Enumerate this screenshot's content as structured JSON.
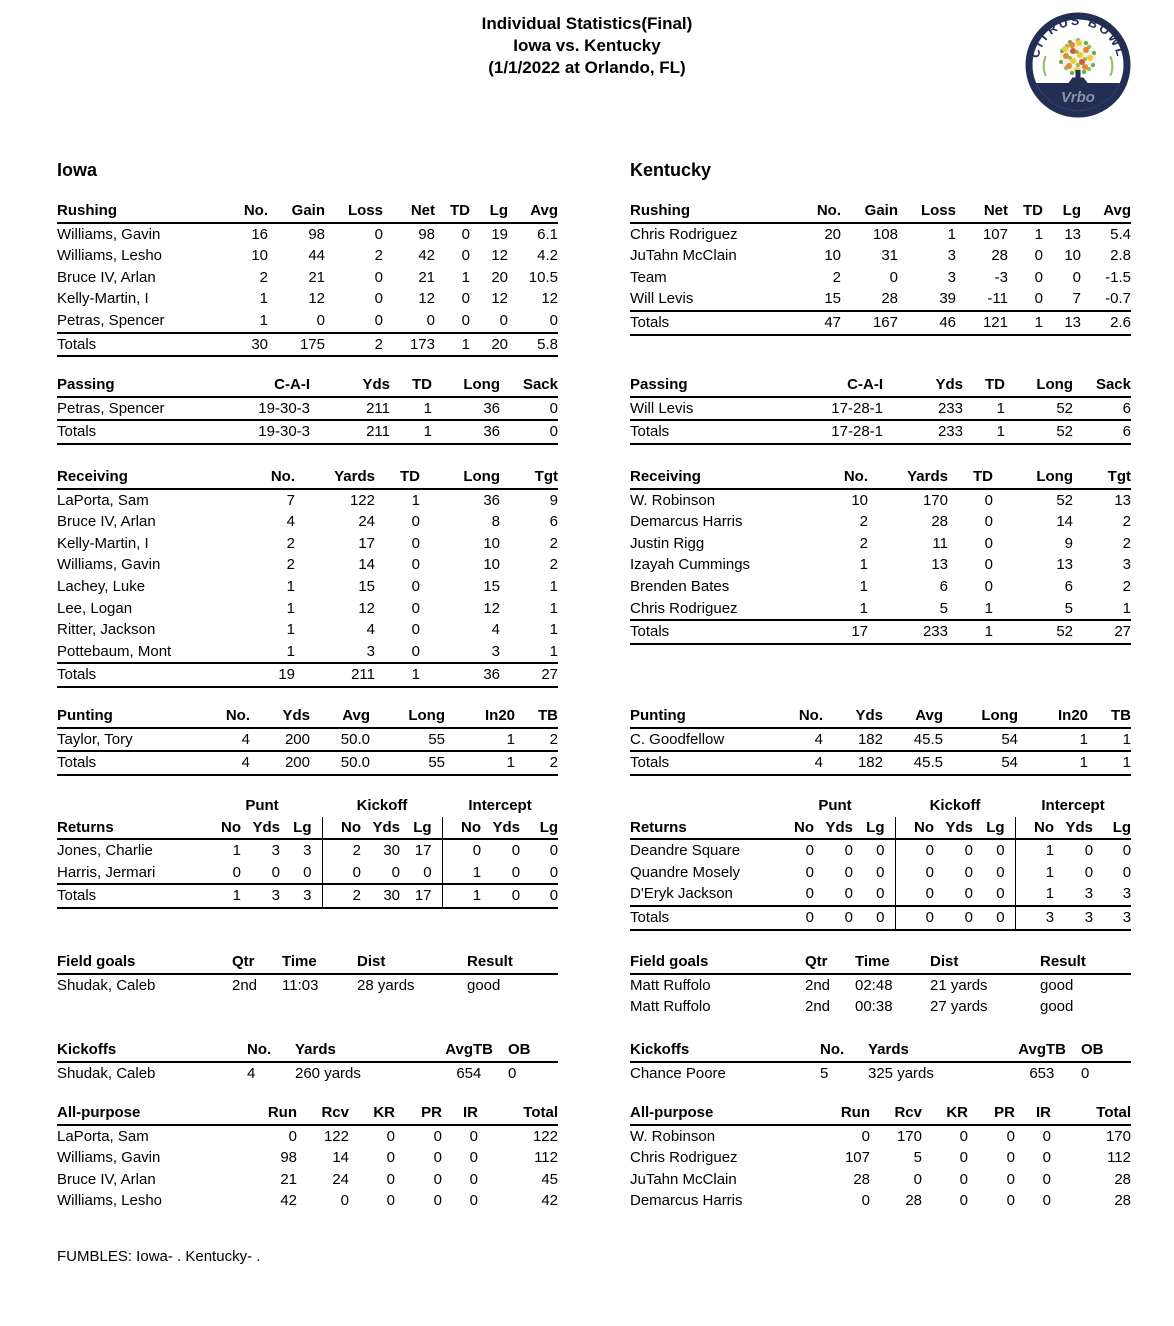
{
  "header": {
    "title_line1": "Individual Statistics(Final)",
    "title_line2": "Iowa vs. Kentucky",
    "title_line3": "(1/1/2022 at Orlando, FL)",
    "logo": {
      "label": "CITRUS BOWL",
      "sponsor": "Vrbo",
      "colors": {
        "navy": "#232e54",
        "leaf_green": "#6aa84f",
        "light_green": "#8fbc61",
        "orange": "#e8872d",
        "yellow": "#f2c73c",
        "red_orange": "#d45f2e",
        "sponsor_gray": "#8b94a6"
      }
    }
  },
  "teams": [
    {
      "name": "Iowa",
      "rushing": {
        "headers": [
          "Rushing",
          "No.",
          "Gain",
          "Loss",
          "Net",
          "TD",
          "Lg",
          "Avg"
        ],
        "rows": [
          [
            "Williams, Gavin",
            "16",
            "98",
            "0",
            "98",
            "0",
            "19",
            "6.1"
          ],
          [
            "Williams, Lesho",
            "10",
            "44",
            "2",
            "42",
            "0",
            "12",
            "4.2"
          ],
          [
            "Bruce IV, Arlan",
            "2",
            "21",
            "0",
            "21",
            "1",
            "20",
            "10.5"
          ],
          [
            "Kelly-Martin, I",
            "1",
            "12",
            "0",
            "12",
            "0",
            "12",
            "12"
          ],
          [
            "Petras, Spencer",
            "1",
            "0",
            "0",
            "0",
            "0",
            "0",
            "0"
          ]
        ],
        "totals": [
          "Totals",
          "30",
          "175",
          "2",
          "173",
          "1",
          "20",
          "5.8"
        ]
      },
      "passing": {
        "headers": [
          "Passing",
          "C-A-I",
          "Yds",
          "TD",
          "Long",
          "Sack"
        ],
        "rows": [
          [
            "Petras, Spencer",
            "19-30-3",
            "211",
            "1",
            "36",
            "0"
          ]
        ],
        "totals": [
          "Totals",
          "19-30-3",
          "211",
          "1",
          "36",
          "0"
        ]
      },
      "receiving": {
        "headers": [
          "Receiving",
          "No.",
          "Yards",
          "TD",
          "Long",
          "Tgt"
        ],
        "rows": [
          [
            "LaPorta, Sam",
            "7",
            "122",
            "1",
            "36",
            "9"
          ],
          [
            "Bruce IV, Arlan",
            "4",
            "24",
            "0",
            "8",
            "6"
          ],
          [
            "Kelly-Martin, I",
            "2",
            "17",
            "0",
            "10",
            "2"
          ],
          [
            "Williams, Gavin",
            "2",
            "14",
            "0",
            "10",
            "2"
          ],
          [
            "Lachey, Luke",
            "1",
            "15",
            "0",
            "15",
            "1"
          ],
          [
            "Lee, Logan",
            "1",
            "12",
            "0",
            "12",
            "1"
          ],
          [
            "Ritter, Jackson",
            "1",
            "4",
            "0",
            "4",
            "1"
          ],
          [
            "Pottebaum, Mont",
            "1",
            "3",
            "0",
            "3",
            "1"
          ]
        ],
        "totals": [
          "Totals",
          "19",
          "211",
          "1",
          "36",
          "27"
        ]
      },
      "punting": {
        "headers": [
          "Punting",
          "No.",
          "Yds",
          "Avg",
          "Long",
          "In20",
          "TB"
        ],
        "rows": [
          [
            "Taylor, Tory",
            "4",
            "200",
            "50.0",
            "55",
            "1",
            "2"
          ]
        ],
        "totals": [
          "Totals",
          "4",
          "200",
          "50.0",
          "55",
          "1",
          "2"
        ]
      },
      "returns": {
        "group_headers": [
          "Punt",
          "Kickoff",
          "Intercept"
        ],
        "headers": [
          "Returns",
          "No",
          "Yds",
          "Lg",
          "No",
          "Yds",
          "Lg",
          "No",
          "Yds",
          "Lg"
        ],
        "rows": [
          [
            "Jones, Charlie",
            "1",
            "3",
            "3",
            "2",
            "30",
            "17",
            "0",
            "0",
            "0"
          ],
          [
            "Harris, Jermari",
            "0",
            "0",
            "0",
            "0",
            "0",
            "0",
            "1",
            "0",
            "0"
          ]
        ],
        "totals": [
          "Totals",
          "1",
          "3",
          "3",
          "2",
          "30",
          "17",
          "1",
          "0",
          "0"
        ]
      },
      "field_goals": {
        "headers": [
          "Field goals",
          "Qtr",
          "Time",
          "Dist",
          "Result"
        ],
        "rows": [
          [
            "Shudak, Caleb",
            "2nd",
            "11:03",
            "28 yards",
            "good"
          ]
        ]
      },
      "kickoffs": {
        "headers": [
          "Kickoffs",
          "No.",
          "Yards",
          "Avg",
          "TB",
          "OB"
        ],
        "rows": [
          [
            "Shudak, Caleb",
            "4",
            "260 yards",
            "65",
            "4",
            "0"
          ]
        ]
      },
      "all_purpose": {
        "headers": [
          "All-purpose",
          "Run",
          "Rcv",
          "KR",
          "PR",
          "IR",
          "Total"
        ],
        "rows": [
          [
            "LaPorta, Sam",
            "0",
            "122",
            "0",
            "0",
            "0",
            "122"
          ],
          [
            "Williams, Gavin",
            "98",
            "14",
            "0",
            "0",
            "0",
            "112"
          ],
          [
            "Bruce IV, Arlan",
            "21",
            "24",
            "0",
            "0",
            "0",
            "45"
          ],
          [
            "Williams, Lesho",
            "42",
            "0",
            "0",
            "0",
            "0",
            "42"
          ]
        ]
      }
    },
    {
      "name": "Kentucky",
      "rushing": {
        "headers": [
          "Rushing",
          "No.",
          "Gain",
          "Loss",
          "Net",
          "TD",
          "Lg",
          "Avg"
        ],
        "rows": [
          [
            "Chris Rodriguez",
            "20",
            "108",
            "1",
            "107",
            "1",
            "13",
            "5.4"
          ],
          [
            "JuTahn McClain",
            "10",
            "31",
            "3",
            "28",
            "0",
            "10",
            "2.8"
          ],
          [
            "Team",
            "2",
            "0",
            "3",
            "-3",
            "0",
            "0",
            "-1.5"
          ],
          [
            "Will Levis",
            "15",
            "28",
            "39",
            "-11",
            "0",
            "7",
            "-0.7"
          ]
        ],
        "totals": [
          "Totals",
          "47",
          "167",
          "46",
          "121",
          "1",
          "13",
          "2.6"
        ]
      },
      "passing": {
        "headers": [
          "Passing",
          "C-A-I",
          "Yds",
          "TD",
          "Long",
          "Sack"
        ],
        "rows": [
          [
            "Will Levis",
            "17-28-1",
            "233",
            "1",
            "52",
            "6"
          ]
        ],
        "totals": [
          "Totals",
          "17-28-1",
          "233",
          "1",
          "52",
          "6"
        ]
      },
      "receiving": {
        "headers": [
          "Receiving",
          "No.",
          "Yards",
          "TD",
          "Long",
          "Tgt"
        ],
        "rows": [
          [
            "W. Robinson",
            "10",
            "170",
            "0",
            "52",
            "13"
          ],
          [
            "Demarcus Harris",
            "2",
            "28",
            "0",
            "14",
            "2"
          ],
          [
            "Justin Rigg",
            "2",
            "11",
            "0",
            "9",
            "2"
          ],
          [
            "Izayah Cummings",
            "1",
            "13",
            "0",
            "13",
            "3"
          ],
          [
            "Brenden Bates",
            "1",
            "6",
            "0",
            "6",
            "2"
          ],
          [
            "Chris Rodriguez",
            "1",
            "5",
            "1",
            "5",
            "1"
          ]
        ],
        "totals": [
          "Totals",
          "17",
          "233",
          "1",
          "52",
          "27"
        ]
      },
      "punting": {
        "headers": [
          "Punting",
          "No.",
          "Yds",
          "Avg",
          "Long",
          "In20",
          "TB"
        ],
        "rows": [
          [
            "C. Goodfellow",
            "4",
            "182",
            "45.5",
            "54",
            "1",
            "1"
          ]
        ],
        "totals": [
          "Totals",
          "4",
          "182",
          "45.5",
          "54",
          "1",
          "1"
        ]
      },
      "returns": {
        "group_headers": [
          "Punt",
          "Kickoff",
          "Intercept"
        ],
        "headers": [
          "Returns",
          "No",
          "Yds",
          "Lg",
          "No",
          "Yds",
          "Lg",
          "No",
          "Yds",
          "Lg"
        ],
        "rows": [
          [
            "Deandre Square",
            "0",
            "0",
            "0",
            "0",
            "0",
            "0",
            "1",
            "0",
            "0"
          ],
          [
            "Quandre Mosely",
            "0",
            "0",
            "0",
            "0",
            "0",
            "0",
            "1",
            "0",
            "0"
          ],
          [
            "D'Eryk Jackson",
            "0",
            "0",
            "0",
            "0",
            "0",
            "0",
            "1",
            "3",
            "3"
          ]
        ],
        "totals": [
          "Totals",
          "0",
          "0",
          "0",
          "0",
          "0",
          "0",
          "3",
          "3",
          "3"
        ]
      },
      "field_goals": {
        "headers": [
          "Field goals",
          "Qtr",
          "Time",
          "Dist",
          "Result"
        ],
        "rows": [
          [
            "Matt Ruffolo",
            "2nd",
            "02:48",
            "21 yards",
            "good"
          ],
          [
            "Matt Ruffolo",
            "2nd",
            "00:38",
            "27 yards",
            "good"
          ]
        ]
      },
      "kickoffs": {
        "headers": [
          "Kickoffs",
          "No.",
          "Yards",
          "Avg",
          "TB",
          "OB"
        ],
        "rows": [
          [
            "Chance Poore",
            "5",
            "325 yards",
            "65",
            "3",
            "0"
          ]
        ]
      },
      "all_purpose": {
        "headers": [
          "All-purpose",
          "Run",
          "Rcv",
          "KR",
          "PR",
          "IR",
          "Total"
        ],
        "rows": [
          [
            "W. Robinson",
            "0",
            "170",
            "0",
            "0",
            "0",
            "170"
          ],
          [
            "Chris Rodriguez",
            "107",
            "5",
            "0",
            "0",
            "0",
            "112"
          ],
          [
            "JuTahn McClain",
            "28",
            "0",
            "0",
            "0",
            "0",
            "28"
          ],
          [
            "Demarcus Harris",
            "0",
            "28",
            "0",
            "0",
            "0",
            "28"
          ]
        ]
      }
    }
  ],
  "footer": {
    "fumbles": "FUMBLES: Iowa- . Kentucky- ."
  }
}
